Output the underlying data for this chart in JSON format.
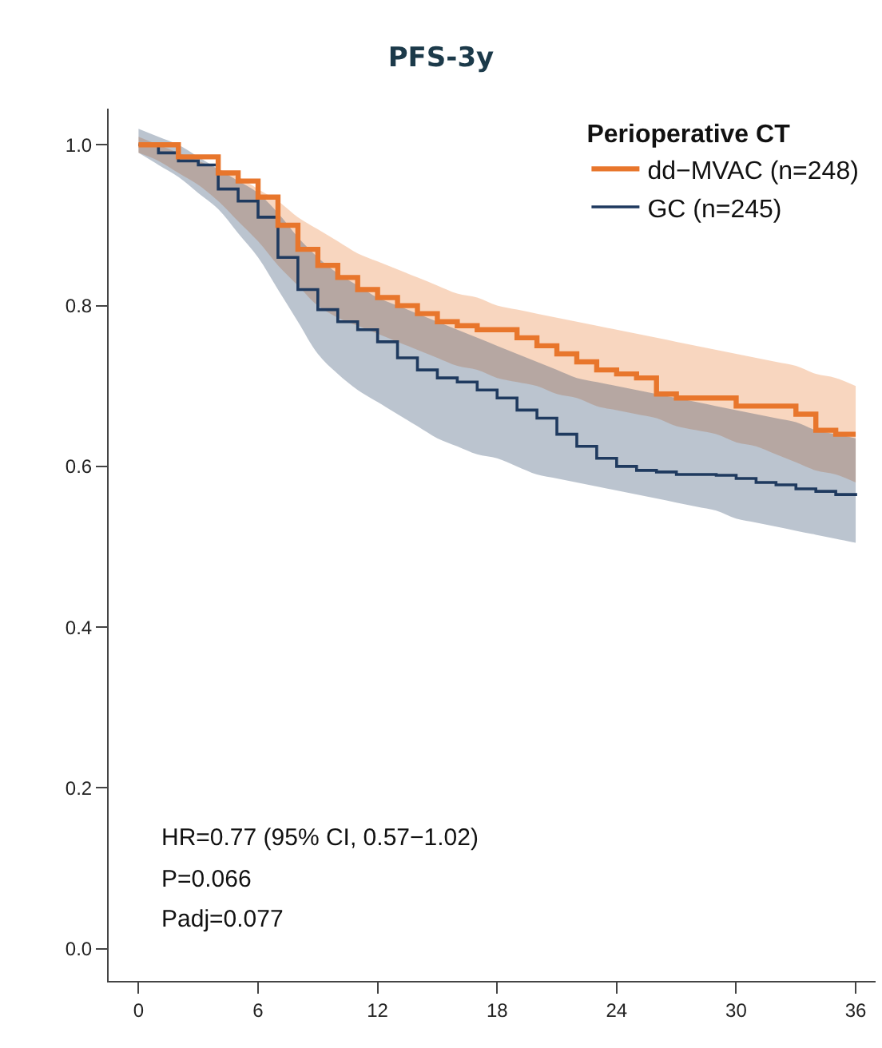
{
  "chart_data": {
    "type": "step",
    "title": "PFS-3y",
    "legend_title": "Perioperative CT",
    "legend": "top right",
    "grid": false,
    "x": [
      0,
      1,
      2,
      3,
      4,
      5,
      6,
      7,
      8,
      9,
      10,
      11,
      12,
      13,
      14,
      15,
      16,
      17,
      18,
      19,
      20,
      21,
      22,
      23,
      24,
      25,
      26,
      27,
      28,
      29,
      30,
      31,
      32,
      33,
      34,
      35,
      36
    ],
    "xlim": [
      -1.5,
      37
    ],
    "xticks": [
      0,
      6,
      12,
      18,
      24,
      30,
      36
    ],
    "ylim": [
      -0.04,
      1.045
    ],
    "yticks": [
      {
        "value": 0,
        "label": "0.0"
      },
      {
        "value": 0.2,
        "label": "0.2"
      },
      {
        "value": 0.4,
        "label": "0.4"
      },
      {
        "value": 0.6,
        "label": "0.6"
      },
      {
        "value": 0.8,
        "label": "0.8"
      },
      {
        "value": 1,
        "label": "1.0"
      }
    ],
    "series": [
      {
        "name": "dd−MVAC (n=248)",
        "color": "#e8762c",
        "values": [
          1.0,
          1.0,
          0.985,
          0.985,
          0.965,
          0.955,
          0.935,
          0.9,
          0.87,
          0.85,
          0.835,
          0.82,
          0.81,
          0.8,
          0.79,
          0.78,
          0.775,
          0.77,
          0.77,
          0.76,
          0.75,
          0.74,
          0.73,
          0.72,
          0.715,
          0.71,
          0.69,
          0.685,
          0.685,
          0.685,
          0.675,
          0.675,
          0.675,
          0.665,
          0.645,
          0.64,
          0.64
        ],
        "upper": [
          1.01,
          1.0,
          0.99,
          0.98,
          0.97,
          0.96,
          0.945,
          0.93,
          0.91,
          0.895,
          0.88,
          0.865,
          0.855,
          0.845,
          0.835,
          0.825,
          0.815,
          0.81,
          0.8,
          0.795,
          0.79,
          0.785,
          0.78,
          0.775,
          0.77,
          0.765,
          0.76,
          0.755,
          0.75,
          0.745,
          0.74,
          0.735,
          0.73,
          0.725,
          0.715,
          0.71,
          0.7
        ],
        "lower": [
          0.99,
          0.98,
          0.965,
          0.95,
          0.93,
          0.905,
          0.88,
          0.85,
          0.825,
          0.8,
          0.785,
          0.775,
          0.765,
          0.755,
          0.745,
          0.735,
          0.725,
          0.72,
          0.71,
          0.705,
          0.7,
          0.69,
          0.685,
          0.675,
          0.67,
          0.665,
          0.66,
          0.65,
          0.645,
          0.64,
          0.63,
          0.625,
          0.615,
          0.605,
          0.595,
          0.59,
          0.58
        ]
      },
      {
        "name": "GC (n=245)",
        "color": "#1f3a5f",
        "values": [
          1.0,
          0.99,
          0.98,
          0.975,
          0.945,
          0.93,
          0.91,
          0.86,
          0.82,
          0.795,
          0.78,
          0.77,
          0.755,
          0.735,
          0.72,
          0.71,
          0.705,
          0.695,
          0.685,
          0.67,
          0.66,
          0.64,
          0.625,
          0.61,
          0.6,
          0.595,
          0.593,
          0.59,
          0.59,
          0.589,
          0.585,
          0.58,
          0.577,
          0.572,
          0.569,
          0.565,
          0.563
        ],
        "upper": [
          1.02,
          1.01,
          1.0,
          0.985,
          0.97,
          0.955,
          0.94,
          0.915,
          0.885,
          0.86,
          0.84,
          0.825,
          0.81,
          0.8,
          0.79,
          0.78,
          0.77,
          0.76,
          0.75,
          0.74,
          0.73,
          0.72,
          0.71,
          0.705,
          0.7,
          0.695,
          0.69,
          0.685,
          0.68,
          0.675,
          0.67,
          0.665,
          0.66,
          0.655,
          0.645,
          0.64,
          0.635
        ],
        "lower": [
          0.99,
          0.975,
          0.96,
          0.94,
          0.92,
          0.89,
          0.86,
          0.82,
          0.78,
          0.74,
          0.715,
          0.695,
          0.68,
          0.665,
          0.65,
          0.635,
          0.625,
          0.615,
          0.61,
          0.6,
          0.59,
          0.585,
          0.58,
          0.575,
          0.57,
          0.565,
          0.56,
          0.555,
          0.55,
          0.545,
          0.535,
          0.53,
          0.525,
          0.52,
          0.515,
          0.51,
          0.505
        ]
      }
    ],
    "annotations": [
      "HR=0.77 (95% CI, 0.57−1.02)",
      "P=0.066",
      "Padj=0.077"
    ]
  }
}
